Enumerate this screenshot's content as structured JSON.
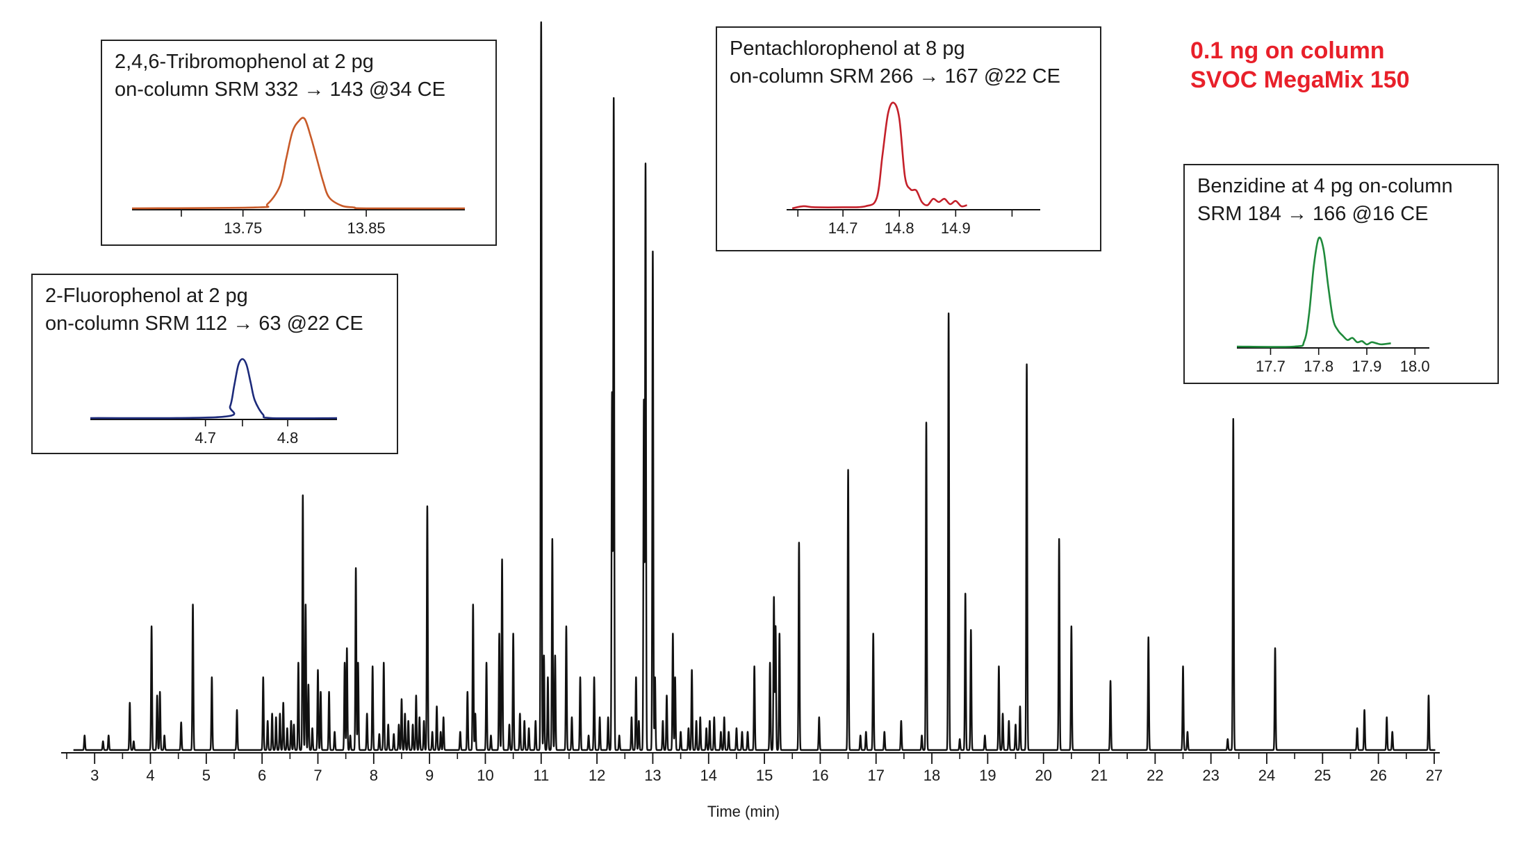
{
  "callout": {
    "line1": "0.1 ng on column",
    "line2": "SVOC MegaMix 150",
    "color": "#e8202a"
  },
  "chart_data": [
    {
      "id": "main",
      "type": "line",
      "xlabel": "Time (min)",
      "ylabel": "",
      "xlim": [
        2.4,
        27.1
      ],
      "ylim": [
        0,
        1
      ],
      "x_tick_labels": [
        3,
        4,
        5,
        6,
        7,
        8,
        9,
        10,
        11,
        12,
        13,
        14,
        15,
        16,
        17,
        18,
        19,
        20,
        21,
        22,
        23,
        24,
        25,
        26,
        27
      ],
      "x_minor_step": 0.5,
      "color": "#111111",
      "peaks": [
        [
          2.82,
          0.02
        ],
        [
          3.15,
          0.012
        ],
        [
          3.25,
          0.02
        ],
        [
          3.63,
          0.065
        ],
        [
          3.7,
          0.012
        ],
        [
          4.02,
          0.17
        ],
        [
          4.12,
          0.075
        ],
        [
          4.17,
          0.08
        ],
        [
          4.25,
          0.02
        ],
        [
          4.55,
          0.038
        ],
        [
          4.76,
          0.2
        ],
        [
          5.1,
          0.1
        ],
        [
          5.55,
          0.055
        ],
        [
          6.02,
          0.1
        ],
        [
          6.1,
          0.04
        ],
        [
          6.18,
          0.05
        ],
        [
          6.25,
          0.045
        ],
        [
          6.32,
          0.05
        ],
        [
          6.38,
          0.065
        ],
        [
          6.45,
          0.03
        ],
        [
          6.52,
          0.04
        ],
        [
          6.57,
          0.035
        ],
        [
          6.65,
          0.12
        ],
        [
          6.73,
          0.35
        ],
        [
          6.78,
          0.2
        ],
        [
          6.83,
          0.09
        ],
        [
          6.9,
          0.03
        ],
        [
          7.0,
          0.11
        ],
        [
          7.05,
          0.08
        ],
        [
          7.2,
          0.08
        ],
        [
          7.3,
          0.025
        ],
        [
          7.48,
          0.12
        ],
        [
          7.52,
          0.14
        ],
        [
          7.58,
          0.02
        ],
        [
          7.68,
          0.25
        ],
        [
          7.72,
          0.12
        ],
        [
          7.88,
          0.05
        ],
        [
          7.98,
          0.115
        ],
        [
          8.1,
          0.022
        ],
        [
          8.18,
          0.12
        ],
        [
          8.26,
          0.035
        ],
        [
          8.36,
          0.022
        ],
        [
          8.45,
          0.035
        ],
        [
          8.5,
          0.07
        ],
        [
          8.56,
          0.05
        ],
        [
          8.62,
          0.04
        ],
        [
          8.7,
          0.035
        ],
        [
          8.76,
          0.075
        ],
        [
          8.82,
          0.045
        ],
        [
          8.9,
          0.04
        ],
        [
          8.96,
          0.335
        ],
        [
          9.05,
          0.025
        ],
        [
          9.13,
          0.06
        ],
        [
          9.2,
          0.025
        ],
        [
          9.25,
          0.045
        ],
        [
          9.55,
          0.025
        ],
        [
          9.68,
          0.08
        ],
        [
          9.78,
          0.2
        ],
        [
          9.82,
          0.05
        ],
        [
          10.02,
          0.12
        ],
        [
          10.1,
          0.02
        ],
        [
          10.25,
          0.16
        ],
        [
          10.3,
          0.262
        ],
        [
          10.43,
          0.035
        ],
        [
          10.5,
          0.16
        ],
        [
          10.62,
          0.05
        ],
        [
          10.7,
          0.04
        ],
        [
          10.78,
          0.03
        ],
        [
          10.9,
          0.04
        ],
        [
          11.0,
          1.0
        ],
        [
          11.05,
          0.13
        ],
        [
          11.12,
          0.1
        ],
        [
          11.2,
          0.29
        ],
        [
          11.25,
          0.13
        ],
        [
          11.45,
          0.17
        ],
        [
          11.55,
          0.045
        ],
        [
          11.7,
          0.1
        ],
        [
          11.85,
          0.02
        ],
        [
          11.95,
          0.1
        ],
        [
          12.05,
          0.045
        ],
        [
          12.2,
          0.045
        ],
        [
          12.27,
          0.49
        ],
        [
          12.3,
          0.895
        ],
        [
          12.4,
          0.02
        ],
        [
          12.62,
          0.045
        ],
        [
          12.7,
          0.1
        ],
        [
          12.75,
          0.04
        ],
        [
          12.84,
          0.48
        ],
        [
          12.87,
          0.805
        ],
        [
          13.0,
          0.685
        ],
        [
          13.04,
          0.1
        ],
        [
          13.18,
          0.04
        ],
        [
          13.25,
          0.075
        ],
        [
          13.36,
          0.16
        ],
        [
          13.4,
          0.1
        ],
        [
          13.5,
          0.025
        ],
        [
          13.64,
          0.03
        ],
        [
          13.7,
          0.11
        ],
        [
          13.78,
          0.04
        ],
        [
          13.85,
          0.045
        ],
        [
          13.96,
          0.03
        ],
        [
          14.02,
          0.04
        ],
        [
          14.1,
          0.045
        ],
        [
          14.22,
          0.025
        ],
        [
          14.28,
          0.045
        ],
        [
          14.36,
          0.025
        ],
        [
          14.5,
          0.03
        ],
        [
          14.6,
          0.025
        ],
        [
          14.7,
          0.025
        ],
        [
          14.82,
          0.115
        ],
        [
          15.1,
          0.12
        ],
        [
          15.17,
          0.21
        ],
        [
          15.2,
          0.17
        ],
        [
          15.27,
          0.16
        ],
        [
          15.62,
          0.285
        ],
        [
          15.98,
          0.045
        ],
        [
          16.5,
          0.385
        ],
        [
          16.72,
          0.02
        ],
        [
          16.82,
          0.025
        ],
        [
          16.95,
          0.16
        ],
        [
          17.15,
          0.025
        ],
        [
          17.45,
          0.04
        ],
        [
          17.82,
          0.02
        ],
        [
          17.9,
          0.45
        ],
        [
          18.3,
          0.6
        ],
        [
          18.5,
          0.015
        ],
        [
          18.6,
          0.215
        ],
        [
          18.7,
          0.165
        ],
        [
          18.95,
          0.02
        ],
        [
          19.2,
          0.115
        ],
        [
          19.27,
          0.05
        ],
        [
          19.38,
          0.04
        ],
        [
          19.5,
          0.035
        ],
        [
          19.58,
          0.06
        ],
        [
          19.7,
          0.53
        ],
        [
          20.28,
          0.29
        ],
        [
          20.5,
          0.17
        ],
        [
          21.2,
          0.095
        ],
        [
          21.88,
          0.155
        ],
        [
          22.5,
          0.115
        ],
        [
          22.58,
          0.025
        ],
        [
          23.3,
          0.015
        ],
        [
          23.4,
          0.455
        ],
        [
          24.15,
          0.14
        ],
        [
          25.62,
          0.03
        ],
        [
          25.75,
          0.055
        ],
        [
          26.15,
          0.045
        ],
        [
          26.25,
          0.025
        ],
        [
          26.9,
          0.075
        ]
      ]
    },
    {
      "id": "tribromophenol",
      "type": "line",
      "title_line1": "2,4,6-Tribromophenol at 2 pg",
      "title_line2": "on-column SRM 332 → 143 @34 CE",
      "color": "#c85a28",
      "xlim": [
        13.66,
        13.93
      ],
      "x_tick_labels": [
        13.75,
        13.85
      ],
      "x_tick_text": [
        "13.75",
        "13.85"
      ],
      "ticks_all": [
        13.7,
        13.75,
        13.8,
        13.85
      ],
      "x": [
        13.66,
        13.76,
        13.77,
        13.78,
        13.785,
        13.79,
        13.795,
        13.8,
        13.805,
        13.81,
        13.815,
        13.82,
        13.83,
        13.84,
        13.85,
        13.93
      ],
      "y": [
        0.0,
        0.01,
        0.05,
        0.25,
        0.55,
        0.85,
        0.97,
        1.0,
        0.8,
        0.55,
        0.3,
        0.12,
        0.03,
        0.01,
        0.0,
        0.0
      ]
    },
    {
      "id": "pentachlorophenol",
      "type": "line",
      "title_line1": "Pentachlorophenol at 8 pg",
      "title_line2": "on-column SRM 266 → 167 @22 CE",
      "color": "#c4202a",
      "xlim": [
        14.6,
        15.05
      ],
      "x_tick_labels": [
        14.7,
        14.8,
        14.9
      ],
      "x_tick_text": [
        "14.7",
        "14.8",
        "14.9"
      ],
      "ticks_all": [
        14.62,
        14.7,
        14.8,
        14.9,
        15.0
      ],
      "x": [
        14.61,
        14.63,
        14.65,
        14.7,
        14.74,
        14.76,
        14.77,
        14.78,
        14.79,
        14.8,
        14.81,
        14.82,
        14.83,
        14.84,
        14.85,
        14.86,
        14.87,
        14.88,
        14.89,
        14.9,
        14.91,
        14.92
      ],
      "y": [
        0.0,
        0.02,
        0.01,
        0.01,
        0.02,
        0.1,
        0.5,
        0.9,
        1.0,
        0.85,
        0.3,
        0.18,
        0.17,
        0.06,
        0.03,
        0.09,
        0.06,
        0.09,
        0.04,
        0.07,
        0.02,
        0.03
      ]
    },
    {
      "id": "benzidine",
      "type": "line",
      "title_line1": "Benzidine at 4 pg on-column",
      "title_line2": "SRM 184 → 166 @16 CE",
      "color": "#1f8a3b",
      "xlim": [
        17.63,
        18.03
      ],
      "x_tick_labels": [
        17.7,
        17.8,
        17.9,
        18.0
      ],
      "x_tick_text": [
        "17.7",
        "17.8",
        "17.9",
        "18.0"
      ],
      "ticks_all": [
        17.7,
        17.8,
        17.9,
        18.0
      ],
      "x": [
        17.63,
        17.75,
        17.77,
        17.78,
        17.79,
        17.8,
        17.81,
        17.82,
        17.83,
        17.84,
        17.85,
        17.86,
        17.87,
        17.88,
        17.89,
        17.9,
        17.91,
        17.92,
        17.93,
        17.95
      ],
      "y": [
        0.0,
        0.0,
        0.05,
        0.3,
        0.75,
        1.0,
        0.9,
        0.55,
        0.25,
        0.15,
        0.1,
        0.06,
        0.08,
        0.04,
        0.05,
        0.02,
        0.04,
        0.03,
        0.02,
        0.03
      ]
    },
    {
      "id": "fluorophenol",
      "type": "line",
      "title_line1": "2-Fluorophenol at 2 pg",
      "title_line2": "on-column SRM 112 → 63 @22 CE",
      "color": "#1c2a7a",
      "xlim": [
        4.56,
        4.86
      ],
      "x_tick_labels": [
        4.7,
        4.8
      ],
      "x_tick_text": [
        "4.7",
        "4.8"
      ],
      "ticks_all": [
        4.7,
        4.745,
        4.8
      ],
      "x": [
        4.56,
        4.72,
        4.73,
        4.735,
        4.74,
        4.745,
        4.75,
        4.755,
        4.76,
        4.77,
        4.78,
        4.86
      ],
      "y": [
        0.0,
        0.02,
        0.2,
        0.55,
        0.9,
        1.0,
        0.9,
        0.6,
        0.3,
        0.06,
        0.0,
        0.0
      ]
    }
  ]
}
